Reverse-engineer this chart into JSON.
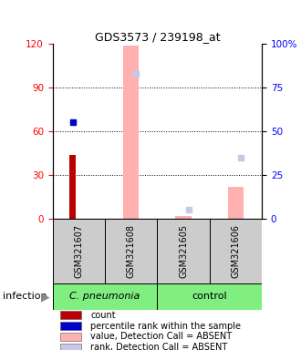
{
  "title": "GDS3573 / 239198_at",
  "samples": [
    "GSM321607",
    "GSM321608",
    "GSM321605",
    "GSM321606"
  ],
  "count_values": [
    44,
    0,
    0,
    0
  ],
  "percentile_values": [
    55,
    0,
    0,
    0
  ],
  "value_absent": [
    0,
    119,
    2,
    22
  ],
  "rank_absent": [
    0,
    83,
    5,
    35
  ],
  "ylim_left": [
    0,
    120
  ],
  "ylim_right": [
    0,
    100
  ],
  "yticks_left": [
    0,
    30,
    60,
    90,
    120
  ],
  "ytick_labels_right": [
    "0",
    "25",
    "50",
    "75",
    "100%"
  ],
  "yticks_right": [
    0,
    25,
    50,
    75,
    100
  ],
  "color_count": "#bb0000",
  "color_percentile": "#0000cc",
  "color_value_absent": "#ffb0b0",
  "color_rank_absent": "#c8c8e8",
  "group1_color": "#80ee80",
  "group2_color": "#80ee80",
  "label_bg": "#cccccc",
  "legend_items": [
    {
      "color": "#bb0000",
      "label": "count"
    },
    {
      "color": "#0000cc",
      "label": "percentile rank within the sample"
    },
    {
      "color": "#ffb0b0",
      "label": "value, Detection Call = ABSENT"
    },
    {
      "color": "#c8c8e8",
      "label": "rank, Detection Call = ABSENT"
    }
  ]
}
